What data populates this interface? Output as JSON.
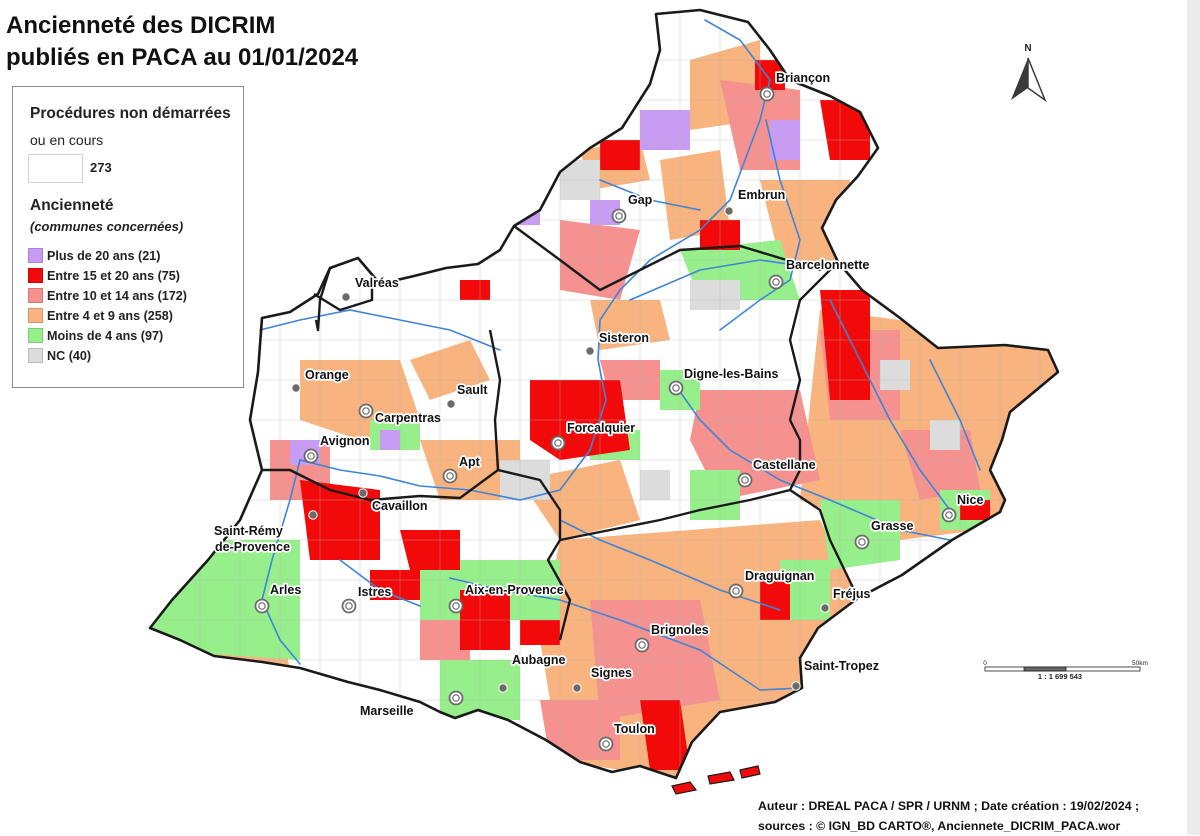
{
  "title": {
    "line1": "Ancienneté des DICRIM",
    "line2": "publiés en PACA au 01/01/2024"
  },
  "legend": {
    "not_started_title": "Procédures non démarrées",
    "not_started_sub": "ou en cours",
    "not_started_count": "273",
    "not_started_color": "#ffffff",
    "age_title": "Ancienneté",
    "age_sub": "(communes concernées)",
    "categories": [
      {
        "label": "Plus de 20 ans (21)",
        "color": "#c79cf2"
      },
      {
        "label": "Entre 15 et 20 ans (75)",
        "color": "#f20a0a"
      },
      {
        "label": "Entre 10 et 14 ans (172)",
        "color": "#f59290"
      },
      {
        "label": "Entre 4 et 9 ans (258)",
        "color": "#f8b37f"
      },
      {
        "label": "Moins de 4 ans (97)",
        "color": "#97ef8c"
      },
      {
        "label": "NC (40)",
        "color": "#dcdcdc"
      }
    ]
  },
  "cities": [
    {
      "name": "Briançon",
      "symbol": "ring"
    },
    {
      "name": "Gap",
      "symbol": "ring"
    },
    {
      "name": "Embrun",
      "symbol": "dot"
    },
    {
      "name": "Barcelonnette",
      "symbol": "ring"
    },
    {
      "name": "Valréas",
      "symbol": "dot"
    },
    {
      "name": "Sisteron",
      "symbol": "dot"
    },
    {
      "name": "Orange",
      "symbol": "dot"
    },
    {
      "name": "Sault",
      "symbol": "dot"
    },
    {
      "name": "Carpentras",
      "symbol": "ring"
    },
    {
      "name": "Digne-les-Bains",
      "symbol": "ring"
    },
    {
      "name": "Avignon",
      "symbol": "ring"
    },
    {
      "name": "Forcalquier",
      "symbol": "ring"
    },
    {
      "name": "Apt",
      "symbol": "ring"
    },
    {
      "name": "Castellane",
      "symbol": "ring"
    },
    {
      "name": "Cavaillon",
      "symbol": "dot"
    },
    {
      "name": "Nice",
      "symbol": "ring"
    },
    {
      "name": "Saint-Rémy",
      "symbol": "dot"
    },
    {
      "name": "de-Provence",
      "symbol": "none"
    },
    {
      "name": "Grasse",
      "symbol": "ring"
    },
    {
      "name": "Arles",
      "symbol": "ring"
    },
    {
      "name": "Istres",
      "symbol": "ring"
    },
    {
      "name": "Aix-en-Provence",
      "symbol": "ring"
    },
    {
      "name": "Draguignan",
      "symbol": "ring"
    },
    {
      "name": "Fréjus",
      "symbol": "dot"
    },
    {
      "name": "Brignoles",
      "symbol": "ring"
    },
    {
      "name": "Aubagne",
      "symbol": "dot"
    },
    {
      "name": "Saint-Tropez",
      "symbol": "dot"
    },
    {
      "name": "Signes",
      "symbol": "dot"
    },
    {
      "name": "Marseille",
      "symbol": "ring"
    },
    {
      "name": "Toulon",
      "symbol": "ring"
    }
  ],
  "north_arrow": {
    "label": "N"
  },
  "scale_bar": {
    "start": "0",
    "end": "50km",
    "ratio": "1 : 1 699 543"
  },
  "credits": {
    "line1": "Auteur : DREAL PACA / SPR / URNM ; Date création : 19/02/2024 ;",
    "line2": "sources : © IGN_BD CARTO®, Anciennete_DICRIM_PACA.wor"
  },
  "colors": {
    "border": "#1a1a1a",
    "river": "#3f84d6",
    "commune_outline": "#b4b4b4",
    "city_symbol": "#6b6b6b"
  }
}
